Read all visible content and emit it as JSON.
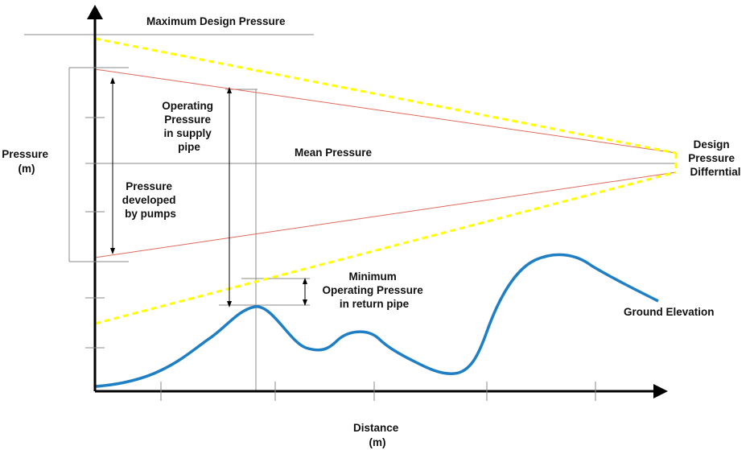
{
  "labels": {
    "maximum_design_pressure": "Maximum Design Pressure",
    "pressure_axis": [
      "Pressure",
      "(m)"
    ],
    "distance_axis": [
      "Distance",
      "(m)"
    ],
    "mean_pressure": "Mean Pressure",
    "operating_pressure_supply": [
      "Operating",
      "Pressure",
      "in supply",
      "pipe"
    ],
    "pressure_developed_by_pumps": [
      "Pressure",
      "developed",
      "by pumps"
    ],
    "design_pressure_differential": [
      "Design",
      "Pressure",
      "Differntial"
    ],
    "minimum_operating_pressure_return": [
      "Minimum",
      "Operating Pressure",
      "in return pipe"
    ],
    "ground_elevation": "Ground Elevation"
  },
  "colors": {
    "axis": "#000000",
    "reference_line": "#8a8a8a",
    "operating_pressure_line": "#e26a5c",
    "design_envelope": "#ffff00",
    "ground_elevation": "#1f7fc4"
  }
}
